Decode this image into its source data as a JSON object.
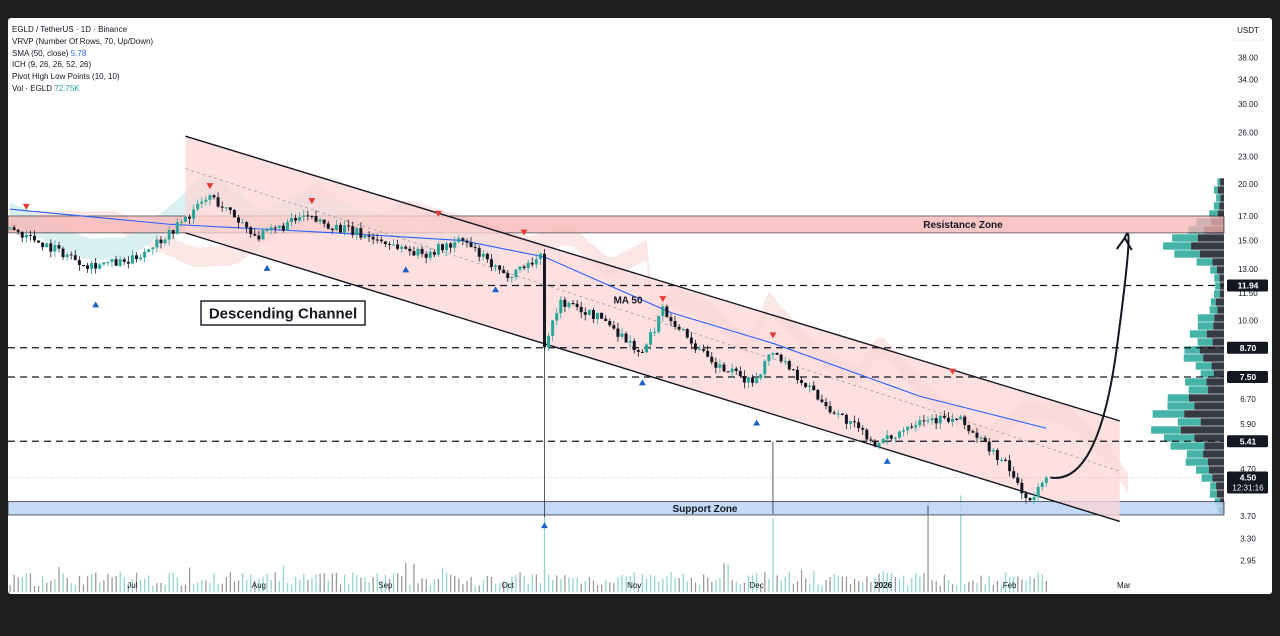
{
  "legend": {
    "symbol": "EGLD / TetherUS · 1D · Binance",
    "vrvp": "VRVP (Number Of Rows, 70, Up/Down)",
    "sma": "SMA (50, close)",
    "sma_value": "5.78",
    "ich": "ICH (9, 26, 26, 52, 26)",
    "pivot": "Pivot High Low Points (10, 10)",
    "vol": "Vol · EGLD",
    "vol_value": "72.75K"
  },
  "colors": {
    "up": "#26a69a",
    "down": "#131722",
    "channel_fill": "#fdd5d5",
    "resistance": "#f8b4b4",
    "support": "#bcd4f7",
    "sma": "#2962ff",
    "pivot_high": "#e53935",
    "pivot_low": "#1e63c9"
  },
  "chart_data": {
    "type": "candlestick",
    "currency": "USDT",
    "price_scale": "log",
    "ylim": [
      2.7,
      46.5
    ],
    "y_ticks": [
      38.0,
      34.0,
      30.0,
      26.0,
      23.0,
      20.0,
      17.0,
      15.0,
      13.0,
      11.5,
      10.0,
      8.7,
      6.7,
      5.9,
      4.7,
      3.7,
      3.3,
      2.95
    ],
    "x_ticks": [
      "Jul",
      "Aug",
      "Sep",
      "Oct",
      "Nov",
      "Dec",
      "2026",
      "Feb",
      "Mar"
    ],
    "price_labels": [
      {
        "value": 11.94,
        "text": "11.94"
      },
      {
        "value": 8.7,
        "text": "8.70"
      },
      {
        "value": 7.5,
        "text": "7.50"
      },
      {
        "value": 5.41,
        "text": "5.41"
      },
      {
        "value": 4.5,
        "text": "4.50",
        "countdown": "12:31:16"
      }
    ],
    "horizontal_levels": [
      11.94,
      8.7,
      7.5,
      5.41
    ],
    "resistance_zone": {
      "label": "Resistance Zone",
      "low": 15.6,
      "high": 17.0
    },
    "support_zone": {
      "label": "Support Zone",
      "low": 3.72,
      "high": 3.98
    },
    "descending_channel": {
      "label": "Descending Channel",
      "upper": [
        [
          "Jul 14",
          25.5
        ],
        [
          "Feb 28",
          6.0
        ]
      ],
      "lower": [
        [
          "Jul 14",
          15.6
        ],
        [
          "Feb 28",
          3.6
        ]
      ]
    },
    "sma_label": "MA 50",
    "sma_50": [
      [
        "Jun 1",
        17.6
      ],
      [
        "Jul 10",
        16.3
      ],
      [
        "Aug 20",
        15.6
      ],
      [
        "Sep 20",
        15.0
      ],
      [
        "Oct 10",
        13.8
      ],
      [
        "Nov 10",
        10.4
      ],
      [
        "Dec 5",
        8.9
      ],
      [
        "Jan 10",
        6.8
      ],
      [
        "Feb 10",
        5.78
      ]
    ],
    "candles_anchor": [
      [
        "Jun 1",
        16.0
      ],
      [
        "Jun 20",
        13.3
      ],
      [
        "Jun 30",
        13.4
      ],
      [
        "Jul 10",
        15.6
      ],
      [
        "Jul 20",
        18.8
      ],
      [
        "Aug 1",
        15.3
      ],
      [
        "Aug 12",
        16.9
      ],
      [
        "Aug 25",
        15.6
      ],
      [
        "Sep 10",
        14.0
      ],
      [
        "Sep 20",
        15.0
      ],
      [
        "Sep 30",
        12.5
      ],
      [
        "Oct 9",
        13.8
      ],
      [
        "Oct 10",
        8.9
      ],
      [
        "Oct 14",
        11.0
      ],
      [
        "Oct 25",
        10.0
      ],
      [
        "Nov 3",
        8.4
      ],
      [
        "Nov 8",
        10.6
      ],
      [
        "Nov 20",
        8.0
      ],
      [
        "Nov 30",
        7.3
      ],
      [
        "Dec 5",
        8.6
      ],
      [
        "Dec 18",
        6.5
      ],
      [
        "Dec 31",
        5.3
      ],
      [
        "Jan 10",
        6.1
      ],
      [
        "Jan 20",
        6.0
      ],
      [
        "Jan 31",
        4.8
      ],
      [
        "Feb 6",
        3.95
      ],
      [
        "Feb 10",
        4.5
      ]
    ],
    "pivot_highs": [
      [
        "Jun 5",
        17.1
      ],
      [
        "Jul 20",
        19.0
      ],
      [
        "Aug 14",
        17.6
      ],
      [
        "Sep 14",
        16.5
      ],
      [
        "Oct 5",
        15.0
      ],
      [
        "Nov 8",
        10.7
      ],
      [
        "Dec 5",
        8.9
      ],
      [
        "Jan 18",
        7.4
      ]
    ],
    "pivot_lows": [
      [
        "Jun 22",
        11.3
      ],
      [
        "Aug 3",
        13.6
      ],
      [
        "Sep 6",
        13.5
      ],
      [
        "Sep 28",
        12.2
      ],
      [
        "Oct 10",
        3.68
      ],
      [
        "Nov 3",
        7.6
      ],
      [
        "Dec 1",
        6.2
      ],
      [
        "Jan 2",
        5.1
      ]
    ],
    "projection": "arrow from 4.50 up to Resistance Zone (~15.0) by late Feb",
    "volume": {
      "last": "72.75K",
      "spikes": [
        "Oct 10",
        "Dec 5",
        "Jan 12",
        "Jan 20"
      ]
    }
  }
}
